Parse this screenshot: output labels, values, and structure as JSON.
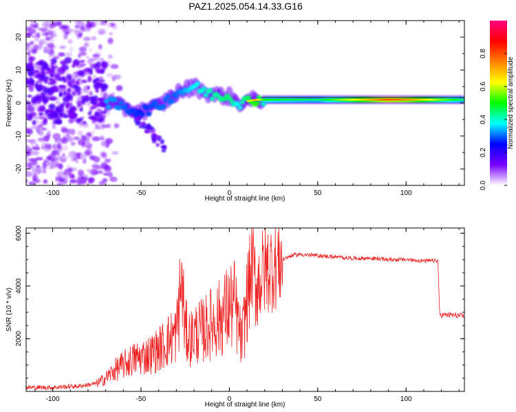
{
  "title": "PAZ1.2025.054.14.33.G16",
  "chart_data": [
    {
      "type": "heatmap",
      "xlabel": "Height of straight line (km)",
      "ylabel": "Frequency (Hz)",
      "xlim": [
        -115,
        133
      ],
      "ylim": [
        -25,
        25
      ],
      "x_ticks": [
        -100,
        -50,
        0,
        50,
        100
      ],
      "y_ticks": [
        -20,
        -10,
        0,
        10,
        20
      ],
      "colorbar": {
        "label": "Normalized spectral amplitude",
        "range": [
          0,
          1
        ],
        "ticks": [
          "0.0",
          "0.2",
          "0.4",
          "0.6",
          "0.8"
        ],
        "colors": [
          "#ffffff",
          "#7a00ff",
          "#0000ff",
          "#00ffff",
          "#00ff00",
          "#ffff00",
          "#ff8000",
          "#ff0000",
          "#ff0080"
        ]
      },
      "ridge": [
        {
          "x": -70,
          "f": 0.5,
          "amp": 0.45
        },
        {
          "x": -60,
          "f": -1.5,
          "amp": 0.4
        },
        {
          "x": -50,
          "f": -2.5,
          "amp": 0.35
        },
        {
          "x": -40,
          "f": -1.0,
          "amp": 0.4
        },
        {
          "x": -30,
          "f": 3.0,
          "amp": 0.4
        },
        {
          "x": -20,
          "f": 5.0,
          "amp": 0.5
        },
        {
          "x": -10,
          "f": 2.5,
          "amp": 0.55
        },
        {
          "x": 0,
          "f": 2.0,
          "amp": 0.6
        },
        {
          "x": 5,
          "f": 0.0,
          "amp": 0.5
        },
        {
          "x": 15,
          "f": 1.0,
          "amp": 0.7
        },
        {
          "x": 20,
          "f": 1.0,
          "amp": 0.5
        },
        {
          "x": 50,
          "f": 1.0,
          "amp": 0.45
        },
        {
          "x": 90,
          "f": 1.0,
          "amp": 0.8
        },
        {
          "x": 100,
          "f": 1.0,
          "amp": 0.75
        },
        {
          "x": 133,
          "f": 1.0,
          "amp": 0.45
        }
      ]
    },
    {
      "type": "line",
      "xlabel": "Height of straight line (km)",
      "ylabel": "SNR (10 * v/v)",
      "xlim": [
        -115,
        133
      ],
      "ylim": [
        0,
        6200
      ],
      "x_ticks": [
        -100,
        -50,
        0,
        50,
        100
      ],
      "y_ticks": [
        2000,
        4000,
        6000
      ],
      "color": "#ee2222",
      "x": [
        -115,
        -100,
        -85,
        -75,
        -70,
        -65,
        -60,
        -55,
        -50,
        -45,
        -40,
        -35,
        -30,
        -27,
        -25,
        -22,
        -20,
        -15,
        -10,
        -5,
        0,
        3,
        7,
        10,
        13,
        15,
        20,
        25,
        30,
        35,
        40,
        50,
        60,
        70,
        80,
        90,
        100,
        110,
        118,
        119,
        125,
        133
      ],
      "y": [
        150,
        150,
        200,
        300,
        500,
        800,
        1000,
        1200,
        1300,
        1400,
        1600,
        1900,
        2200,
        4200,
        2300,
        2000,
        2200,
        2300,
        2600,
        2800,
        3200,
        3300,
        1800,
        3500,
        4800,
        4000,
        4600,
        4800,
        5000,
        5150,
        5200,
        5150,
        5100,
        5050,
        5050,
        5000,
        5000,
        4950,
        4950,
        2900,
        2900,
        2850
      ]
    }
  ]
}
